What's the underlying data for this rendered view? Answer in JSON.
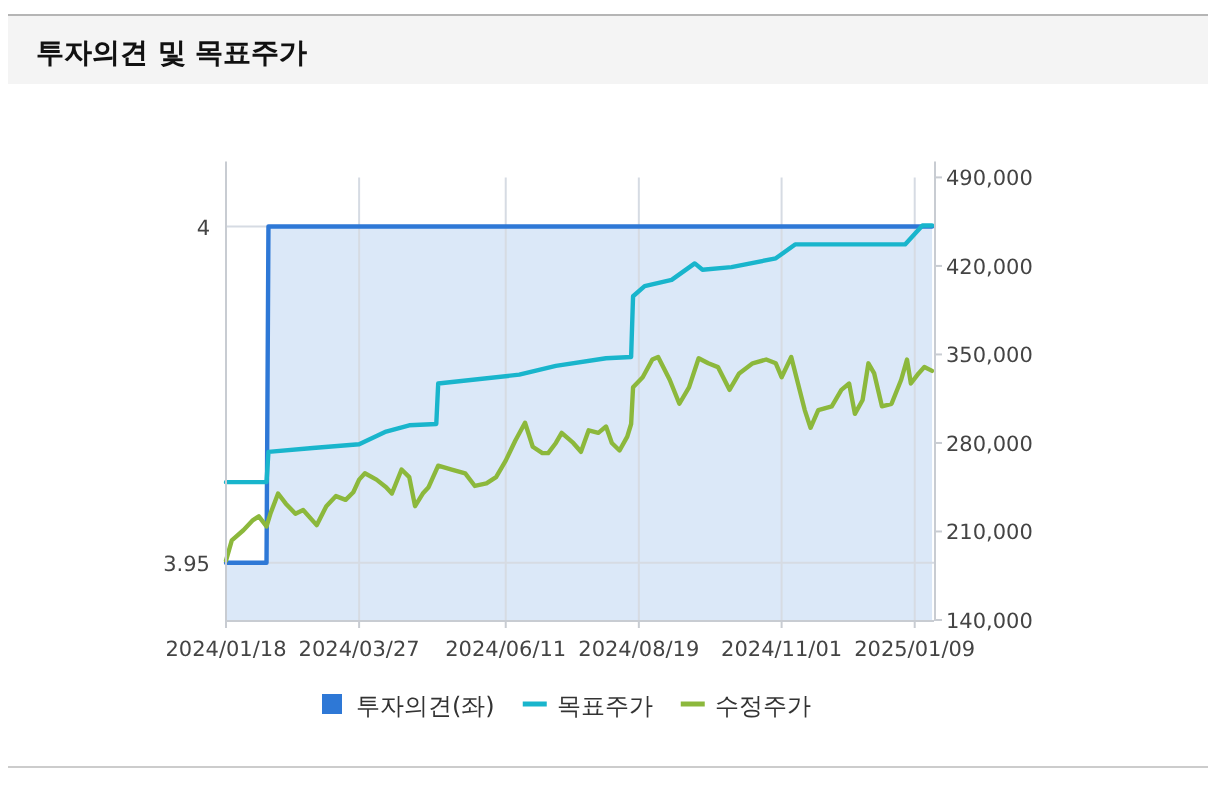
{
  "chart_data": {
    "type": "line",
    "title": "투자의견 및 목표주가",
    "xlim": [
      "2024-01-18",
      "2025-01-19"
    ],
    "xticks": [
      {
        "value": "2024-01-18",
        "label": "2024/01/18"
      },
      {
        "value": "2024-03-27",
        "label": "2024/03/27"
      },
      {
        "value": "2024-06-11",
        "label": "2024/06/11"
      },
      {
        "value": "2024-08-19",
        "label": "2024/08/19"
      },
      {
        "value": "2024-11-01",
        "label": "2024/11/01"
      },
      {
        "value": "2025-01-09",
        "label": "2025/01/09"
      }
    ],
    "ylim": [
      3.9415,
      4.0073
    ],
    "yticks": [
      3.95,
      4
    ],
    "y2lim": [
      140000,
      490000
    ],
    "y2ticks": [
      {
        "value": 140000,
        "label": "140,000"
      },
      {
        "value": 210000,
        "label": "210,000"
      },
      {
        "value": 280000,
        "label": "280,000"
      },
      {
        "value": 350000,
        "label": "350,000"
      },
      {
        "value": 420000,
        "label": "420,000"
      },
      {
        "value": 490000,
        "label": "490,000"
      }
    ],
    "grid": true,
    "legend": "bottom",
    "series": [
      {
        "name": "투자의견(좌)",
        "type": "area",
        "color": "#2e78d6",
        "x": [
          "2024-01-18",
          "2024-02-08",
          "2024-02-09",
          "2025-01-18"
        ],
        "values": [
          3.95,
          3.95,
          4,
          4
        ]
      },
      {
        "name": "목표주가",
        "axis": "y2",
        "color": "#19b5cc",
        "x": [
          "2024-01-18",
          "2024-02-08",
          "2024-02-09",
          "2024-03-03",
          "2024-03-27",
          "2024-04-10",
          "2024-04-22",
          "2024-05-06",
          "2024-05-07",
          "2024-06-18",
          "2024-07-07",
          "2024-08-02",
          "2024-08-15",
          "2024-08-16",
          "2024-08-22",
          "2024-09-05",
          "2024-09-17",
          "2024-09-21",
          "2024-10-06",
          "2024-10-29",
          "2024-11-08",
          "2025-01-04",
          "2025-01-13",
          "2025-01-18"
        ],
        "values": [
          249000,
          249000,
          273000,
          276000,
          279000,
          289000,
          294000,
          295000,
          327000,
          334000,
          341000,
          347000,
          348000,
          396000,
          404000,
          409000,
          422000,
          417000,
          419000,
          426000,
          437000,
          437000,
          452000,
          452000
        ]
      },
      {
        "name": "수정주가",
        "type": "line",
        "axis": "y2",
        "color": "#8cb83c",
        "x": [
          "2024-01-18",
          "2024-01-21",
          "2024-01-27",
          "2024-02-01",
          "2024-02-04",
          "2024-02-08",
          "2024-02-10",
          "2024-02-14",
          "2024-02-18",
          "2024-02-23",
          "2024-02-27",
          "2024-03-05",
          "2024-03-10",
          "2024-03-15",
          "2024-03-20",
          "2024-03-24",
          "2024-03-27",
          "2024-03-30",
          "2024-04-05",
          "2024-04-10",
          "2024-04-13",
          "2024-04-18",
          "2024-04-22",
          "2024-04-25",
          "2024-04-29",
          "2024-05-02",
          "2024-05-07",
          "2024-05-14",
          "2024-05-21",
          "2024-05-26",
          "2024-06-01",
          "2024-06-06",
          "2024-06-11",
          "2024-06-16",
          "2024-06-21",
          "2024-06-25",
          "2024-06-30",
          "2024-07-03",
          "2024-07-07",
          "2024-07-10",
          "2024-07-16",
          "2024-07-20",
          "2024-07-24",
          "2024-07-29",
          "2024-08-02",
          "2024-08-05",
          "2024-08-09",
          "2024-08-13",
          "2024-08-15",
          "2024-08-16",
          "2024-08-21",
          "2024-08-26",
          "2024-08-29",
          "2024-09-04",
          "2024-09-09",
          "2024-09-14",
          "2024-09-19",
          "2024-09-24",
          "2024-09-29",
          "2024-10-05",
          "2024-10-10",
          "2024-10-17",
          "2024-10-24",
          "2024-10-29",
          "2024-11-01",
          "2024-11-06",
          "2024-11-09",
          "2024-11-13",
          "2024-11-16",
          "2024-11-20",
          "2024-11-27",
          "2024-12-02",
          "2024-12-06",
          "2024-12-09",
          "2024-12-13",
          "2024-12-16",
          "2024-12-19",
          "2024-12-23",
          "2024-12-28",
          "2025-01-02",
          "2025-01-05",
          "2025-01-07",
          "2025-01-11",
          "2025-01-14",
          "2025-01-18"
        ],
        "values": [
          187000,
          203000,
          211000,
          219000,
          222000,
          214000,
          224000,
          240000,
          232000,
          224000,
          227000,
          215000,
          230000,
          238000,
          235000,
          241000,
          251000,
          256000,
          251000,
          245000,
          240000,
          259000,
          253000,
          230000,
          240000,
          245000,
          262000,
          259000,
          256000,
          246000,
          248000,
          253000,
          266000,
          282000,
          296000,
          277000,
          272000,
          272000,
          280000,
          288000,
          280000,
          273000,
          290000,
          288000,
          293000,
          280000,
          274000,
          285000,
          295000,
          324000,
          332000,
          346000,
          348000,
          330000,
          311000,
          324000,
          347000,
          343000,
          340000,
          322000,
          335000,
          343000,
          346000,
          343000,
          332000,
          348000,
          330000,
          306000,
          292000,
          306000,
          309000,
          322000,
          327000,
          303000,
          314000,
          343000,
          335000,
          309000,
          311000,
          330000,
          346000,
          327000,
          335000,
          340000,
          337000
        ]
      }
    ]
  }
}
